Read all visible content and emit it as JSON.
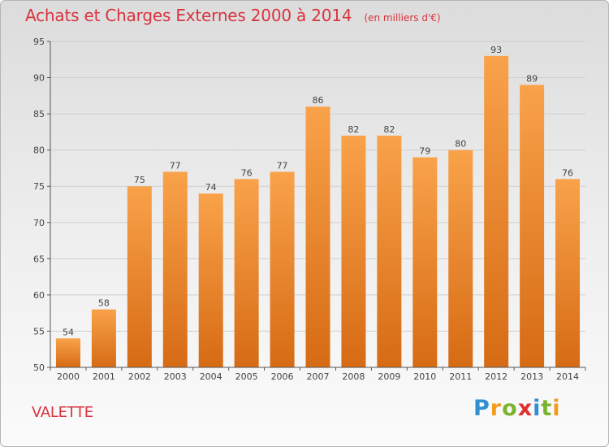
{
  "header": {
    "title": "Achats et Charges Externes 2000 à 2014",
    "subtitle": "(en milliers d'€)"
  },
  "footer": {
    "commune": "VALETTE",
    "logo_letters": [
      "P",
      "r",
      "o",
      "x",
      "i",
      "t",
      "i"
    ]
  },
  "colors": {
    "title": "#d8343e",
    "bar_top": "#f9a24a",
    "bar_bottom": "#d66b14",
    "axis": "#555555",
    "grid": "#cfcfcf"
  },
  "chart_data": {
    "type": "bar",
    "title": "Achats et Charges Externes 2000 à 2014",
    "subtitle": "(en milliers d'€)",
    "xlabel": "",
    "ylabel": "",
    "categories": [
      "2000",
      "2001",
      "2002",
      "2003",
      "2004",
      "2005",
      "2006",
      "2007",
      "2008",
      "2009",
      "2010",
      "2011",
      "2012",
      "2013",
      "2014"
    ],
    "values": [
      54,
      58,
      75,
      77,
      74,
      76,
      77,
      86,
      82,
      82,
      79,
      80,
      93,
      89,
      76
    ],
    "ylim": [
      50,
      95
    ],
    "yticks": [
      50,
      55,
      60,
      65,
      70,
      75,
      80,
      85,
      90,
      95
    ],
    "grid": "horizontal",
    "data_labels": true
  }
}
